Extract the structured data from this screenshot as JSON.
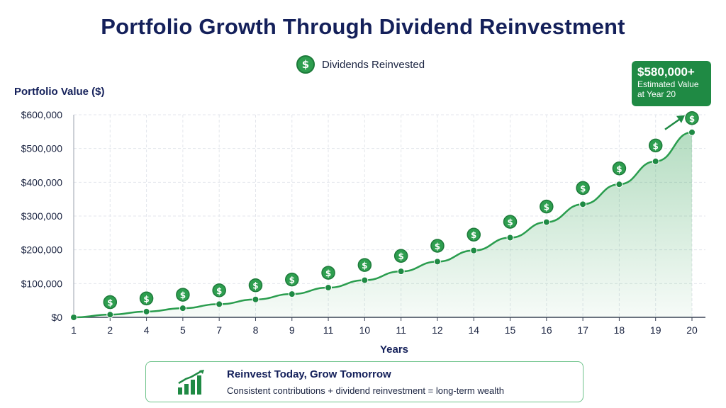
{
  "title": "Portfolio Growth Through Dividend Reinvestment",
  "legend": {
    "label": "Dividends Reinvested",
    "icon": "dollar-coin-icon"
  },
  "callout": {
    "value": "$580,000+",
    "line1": "Estimated Value",
    "line2": "at Year 20"
  },
  "footer": {
    "heading": "Reinvest Today, Grow Tomorrow",
    "text": "Consistent contributions + dividend reinvestment = long-term wealth",
    "icon": "growth-chart-icon"
  },
  "colors": {
    "line": "#2a9d4e",
    "dot": "#1f8a44",
    "coin": "#2e9e4f",
    "title": "#14205a",
    "area": "#2a9d4e"
  },
  "chart_data": {
    "type": "area",
    "ylabel": "Portfolio Value ($)",
    "xlabel": "Years",
    "x_tick_labels": [
      "1",
      "2",
      "4",
      "5",
      "7",
      "8",
      "9",
      "11",
      "10",
      "11",
      "12",
      "14",
      "15",
      "16",
      "17",
      "18",
      "19",
      "20"
    ],
    "y_tick_labels": [
      "$0",
      "$100,000",
      "$200,000",
      "$300,000",
      "$400,000",
      "$500,000",
      "$600,000"
    ],
    "ylim": [
      0,
      600000
    ],
    "grid": true,
    "series": [
      {
        "name": "",
        "values": [
          0,
          8000,
          17000,
          27000,
          39000,
          53000,
          69000,
          88000,
          110000,
          136000,
          165000,
          198000,
          236000,
          282000,
          335000,
          394000,
          462000,
          548000
        ]
      },
      {
        "name": "Dividends Reinvested",
        "marker": "dollar-coin-icon",
        "x_index": [
          1,
          2,
          3,
          4,
          5,
          6,
          7,
          8,
          9,
          10,
          11,
          12,
          13,
          14,
          15,
          16,
          17
        ],
        "values": [
          45000,
          56000,
          67000,
          80000,
          95000,
          112000,
          132000,
          155000,
          182000,
          212000,
          245000,
          283000,
          328000,
          383000,
          441000,
          509000,
          590000
        ]
      }
    ]
  }
}
